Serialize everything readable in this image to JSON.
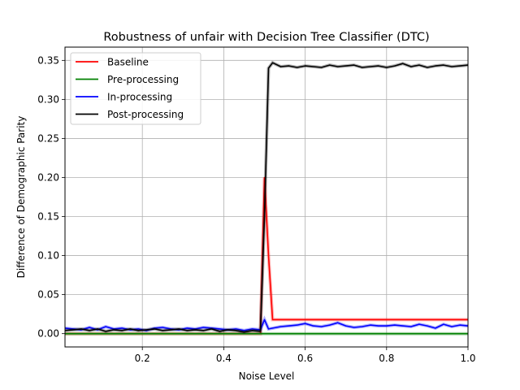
{
  "chart_data": {
    "type": "line",
    "title": "Robustness of unfair with Decision Tree Classifier (DTC)",
    "xlabel": "Noise Level",
    "ylabel": "Difference of Demographic Parity",
    "xlim": [
      0.01,
      1.0
    ],
    "ylim": [
      -0.017,
      0.367
    ],
    "xticks": [
      0.2,
      0.4,
      0.6,
      0.8,
      1.0
    ],
    "xtick_labels": [
      "0.2",
      "0.4",
      "0.6",
      "0.8",
      "1.0"
    ],
    "yticks": [
      0.0,
      0.05,
      0.1,
      0.15,
      0.2,
      0.25,
      0.3,
      0.35
    ],
    "ytick_labels": [
      "0.00",
      "0.05",
      "0.10",
      "0.15",
      "0.20",
      "0.25",
      "0.30",
      "0.35"
    ],
    "grid": true,
    "legend_position": "top-left",
    "series": [
      {
        "name": "Baseline",
        "color": "#ff0000",
        "x": [
          0.01,
          0.49,
          0.5,
          0.51,
          0.52,
          1.0
        ],
        "values": [
          0.0,
          0.0,
          0.2,
          0.1,
          0.018,
          0.018
        ]
      },
      {
        "name": "Pre-processing",
        "color": "#008000",
        "x": [
          0.01,
          0.49,
          0.5,
          1.0
        ],
        "values": [
          0.0,
          0.0,
          0.0,
          0.0
        ]
      },
      {
        "name": "In-processing",
        "color": "#0000ff",
        "x": [
          0.01,
          0.03,
          0.05,
          0.07,
          0.09,
          0.11,
          0.13,
          0.15,
          0.17,
          0.19,
          0.21,
          0.23,
          0.25,
          0.27,
          0.29,
          0.31,
          0.33,
          0.35,
          0.37,
          0.39,
          0.41,
          0.43,
          0.45,
          0.47,
          0.49,
          0.5,
          0.51,
          0.52,
          0.54,
          0.56,
          0.58,
          0.6,
          0.62,
          0.64,
          0.66,
          0.68,
          0.7,
          0.72,
          0.74,
          0.76,
          0.78,
          0.8,
          0.82,
          0.84,
          0.86,
          0.88,
          0.9,
          0.92,
          0.94,
          0.96,
          0.98,
          1.0
        ],
        "values": [
          0.007,
          0.006,
          0.005,
          0.008,
          0.005,
          0.009,
          0.006,
          0.007,
          0.005,
          0.006,
          0.004,
          0.007,
          0.008,
          0.006,
          0.005,
          0.007,
          0.006,
          0.008,
          0.007,
          0.006,
          0.005,
          0.006,
          0.004,
          0.006,
          0.005,
          0.018,
          0.006,
          0.007,
          0.009,
          0.01,
          0.011,
          0.013,
          0.01,
          0.009,
          0.011,
          0.014,
          0.01,
          0.008,
          0.009,
          0.011,
          0.01,
          0.01,
          0.011,
          0.01,
          0.009,
          0.012,
          0.01,
          0.007,
          0.012,
          0.009,
          0.011,
          0.01
        ]
      },
      {
        "name": "Post-processing",
        "color": "#000000",
        "x": [
          0.01,
          0.03,
          0.05,
          0.07,
          0.09,
          0.11,
          0.13,
          0.15,
          0.17,
          0.19,
          0.21,
          0.23,
          0.25,
          0.27,
          0.29,
          0.31,
          0.33,
          0.35,
          0.37,
          0.39,
          0.41,
          0.43,
          0.45,
          0.47,
          0.49,
          0.5,
          0.51,
          0.52,
          0.54,
          0.56,
          0.58,
          0.6,
          0.62,
          0.64,
          0.66,
          0.68,
          0.7,
          0.72,
          0.74,
          0.76,
          0.78,
          0.8,
          0.82,
          0.84,
          0.86,
          0.88,
          0.9,
          0.92,
          0.94,
          0.96,
          0.98,
          1.0
        ],
        "values": [
          0.004,
          0.005,
          0.006,
          0.004,
          0.006,
          0.003,
          0.005,
          0.004,
          0.006,
          0.004,
          0.005,
          0.006,
          0.004,
          0.005,
          0.006,
          0.004,
          0.005,
          0.004,
          0.006,
          0.003,
          0.005,
          0.004,
          0.002,
          0.004,
          0.003,
          0.15,
          0.34,
          0.347,
          0.342,
          0.343,
          0.341,
          0.343,
          0.342,
          0.341,
          0.344,
          0.342,
          0.343,
          0.344,
          0.341,
          0.342,
          0.343,
          0.341,
          0.343,
          0.346,
          0.342,
          0.344,
          0.341,
          0.343,
          0.344,
          0.342,
          0.343,
          0.344
        ]
      }
    ]
  }
}
